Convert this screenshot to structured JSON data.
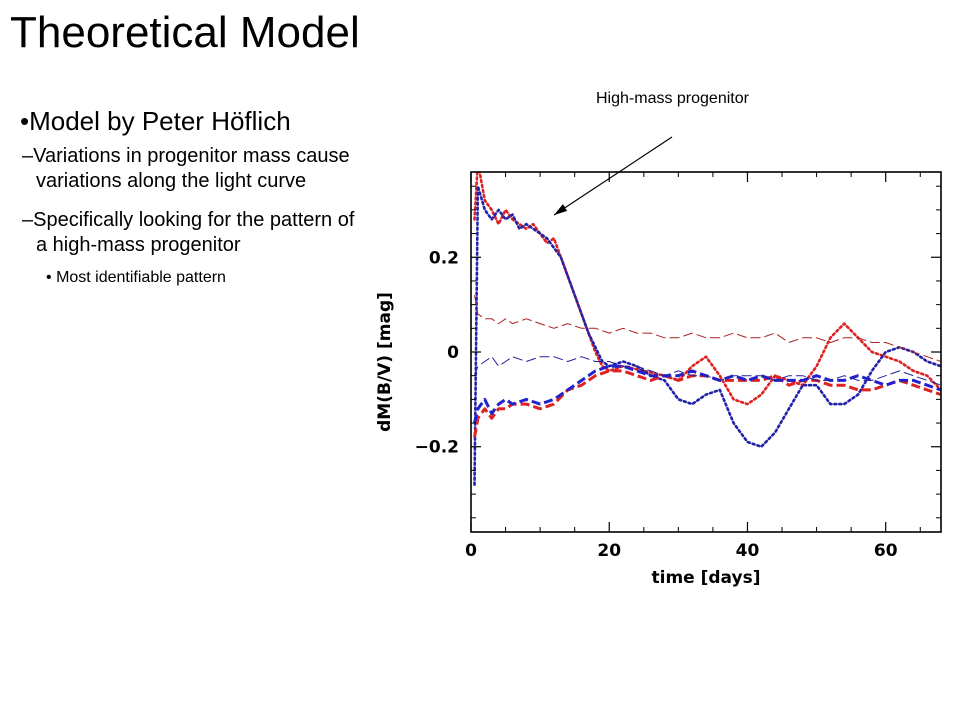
{
  "slide": {
    "title": "Theoretical Model",
    "bullet": "•Model by Peter Höflich",
    "sub_bullets": [
      "–Variations in progenitor mass cause variations along the light curve",
      "–Specifically looking for the pattern of a high-mass progenitor"
    ],
    "sub_sub_bullet": "Most identifiable pattern",
    "sub_sub_marker": "•"
  },
  "annotation": {
    "text": "High-mass progenitor",
    "arrow_color": "#000000"
  },
  "chart_data": {
    "type": "line",
    "xlabel": "time [days]",
    "ylabel": "dM(B/V) [mag]",
    "xlim": [
      0,
      68
    ],
    "ylim": [
      -0.38,
      0.38
    ],
    "x_ticks": [
      0,
      20,
      40,
      60
    ],
    "x_tick_labels": [
      "0",
      "20",
      "40",
      "60"
    ],
    "y_ticks": [
      0.2,
      0,
      -0.2
    ],
    "y_tick_labels": [
      "0.2",
      "0",
      "−0.2"
    ],
    "grid": false,
    "series": [
      {
        "color": "#dd2222",
        "style": "dotted",
        "x": [
          0.5,
          1,
          2,
          3,
          4,
          5,
          6,
          7,
          8,
          9,
          10,
          11,
          12,
          13,
          14,
          15,
          16,
          17,
          18,
          19,
          20,
          22,
          25,
          28,
          30,
          32,
          34,
          36,
          38,
          40,
          42,
          44,
          46,
          48,
          50,
          52,
          54,
          56,
          58,
          60,
          62,
          64,
          66,
          68
        ],
        "y": [
          0.28,
          0.4,
          0.32,
          0.3,
          0.27,
          0.3,
          0.28,
          0.27,
          0.26,
          0.27,
          0.25,
          0.23,
          0.24,
          0.2,
          0.16,
          0.12,
          0.08,
          0.04,
          0.0,
          -0.03,
          -0.04,
          -0.03,
          -0.04,
          -0.05,
          -0.06,
          -0.03,
          -0.01,
          -0.05,
          -0.1,
          -0.11,
          -0.09,
          -0.05,
          -0.06,
          -0.07,
          -0.03,
          0.03,
          0.06,
          0.03,
          0.0,
          -0.01,
          -0.02,
          -0.04,
          -0.05,
          -0.08
        ]
      },
      {
        "color": "#2222aa",
        "style": "dotted",
        "x": [
          0.5,
          1,
          2,
          3,
          4,
          5,
          6,
          7,
          8,
          9,
          10,
          11,
          12,
          13,
          14,
          15,
          16,
          17,
          18,
          19,
          20,
          22,
          24,
          26,
          28,
          30,
          32,
          34,
          36,
          38,
          40,
          42,
          44,
          46,
          48,
          50,
          52,
          54,
          56,
          58,
          60,
          62,
          64,
          66,
          68
        ],
        "y": [
          -0.28,
          0.35,
          0.3,
          0.28,
          0.3,
          0.28,
          0.29,
          0.26,
          0.27,
          0.26,
          0.25,
          0.24,
          0.22,
          0.2,
          0.16,
          0.12,
          0.08,
          0.04,
          0.01,
          -0.02,
          -0.03,
          -0.02,
          -0.03,
          -0.05,
          -0.06,
          -0.1,
          -0.11,
          -0.09,
          -0.08,
          -0.15,
          -0.19,
          -0.2,
          -0.17,
          -0.12,
          -0.07,
          -0.07,
          -0.11,
          -0.11,
          -0.09,
          -0.04,
          0.0,
          0.01,
          0.0,
          -0.02,
          -0.03
        ]
      },
      {
        "color": "#dd2222",
        "style": "dashed-thick",
        "x": [
          0.5,
          1,
          2,
          3,
          4,
          5,
          6,
          8,
          10,
          12,
          14,
          16,
          18,
          20,
          22,
          24,
          26,
          28,
          30,
          32,
          34,
          36,
          38,
          40,
          42,
          44,
          46,
          48,
          50,
          52,
          54,
          56,
          58,
          60,
          62,
          64,
          66,
          68
        ],
        "y": [
          -0.18,
          -0.14,
          -0.12,
          -0.14,
          -0.12,
          -0.12,
          -0.11,
          -0.11,
          -0.12,
          -0.11,
          -0.08,
          -0.07,
          -0.05,
          -0.04,
          -0.04,
          -0.05,
          -0.06,
          -0.05,
          -0.06,
          -0.05,
          -0.05,
          -0.06,
          -0.06,
          -0.06,
          -0.06,
          -0.05,
          -0.07,
          -0.06,
          -0.06,
          -0.07,
          -0.07,
          -0.08,
          -0.08,
          -0.07,
          -0.06,
          -0.07,
          -0.08,
          -0.09
        ]
      },
      {
        "color": "#2222cc",
        "style": "dashed-thick",
        "x": [
          0.5,
          1,
          2,
          3,
          4,
          5,
          6,
          8,
          10,
          12,
          14,
          16,
          18,
          20,
          22,
          24,
          26,
          28,
          30,
          32,
          34,
          36,
          38,
          40,
          42,
          44,
          46,
          48,
          50,
          52,
          54,
          56,
          58,
          60,
          62,
          64,
          66,
          68
        ],
        "y": [
          -0.15,
          -0.12,
          -0.1,
          -0.13,
          -0.11,
          -0.1,
          -0.11,
          -0.1,
          -0.11,
          -0.1,
          -0.08,
          -0.06,
          -0.04,
          -0.03,
          -0.03,
          -0.04,
          -0.05,
          -0.05,
          -0.05,
          -0.04,
          -0.05,
          -0.06,
          -0.05,
          -0.06,
          -0.05,
          -0.06,
          -0.06,
          -0.06,
          -0.05,
          -0.06,
          -0.06,
          -0.05,
          -0.06,
          -0.07,
          -0.06,
          -0.06,
          -0.07,
          -0.08
        ]
      },
      {
        "color": "#aa2222",
        "style": "dashed-thin",
        "x": [
          0.5,
          1,
          2,
          3,
          4,
          5,
          6,
          8,
          10,
          12,
          14,
          16,
          18,
          20,
          22,
          24,
          26,
          28,
          30,
          32,
          34,
          36,
          38,
          40,
          42,
          44,
          46,
          48,
          50,
          52,
          54,
          56,
          58,
          60,
          62,
          64,
          66,
          68
        ],
        "y": [
          0.12,
          0.08,
          0.07,
          0.07,
          0.06,
          0.07,
          0.06,
          0.07,
          0.06,
          0.05,
          0.06,
          0.05,
          0.05,
          0.04,
          0.05,
          0.04,
          0.04,
          0.03,
          0.03,
          0.04,
          0.03,
          0.03,
          0.04,
          0.03,
          0.03,
          0.04,
          0.02,
          0.03,
          0.03,
          0.02,
          0.03,
          0.03,
          0.02,
          0.02,
          0.01,
          0.0,
          -0.01,
          -0.02
        ]
      },
      {
        "color": "#222299",
        "style": "dashed-thin",
        "x": [
          0.5,
          1,
          2,
          3,
          4,
          5,
          6,
          8,
          10,
          12,
          14,
          16,
          18,
          20,
          22,
          24,
          26,
          28,
          30,
          32,
          34,
          36,
          38,
          40,
          42,
          44,
          46,
          48,
          50,
          52,
          54,
          56,
          58,
          60,
          62,
          64,
          66,
          68
        ],
        "y": [
          -0.05,
          -0.03,
          -0.02,
          -0.01,
          -0.03,
          -0.02,
          -0.01,
          -0.02,
          -0.01,
          -0.01,
          -0.02,
          -0.01,
          -0.02,
          -0.02,
          -0.03,
          -0.03,
          -0.04,
          -0.05,
          -0.04,
          -0.05,
          -0.05,
          -0.06,
          -0.05,
          -0.05,
          -0.05,
          -0.06,
          -0.05,
          -0.05,
          -0.06,
          -0.06,
          -0.05,
          -0.06,
          -0.06,
          -0.05,
          -0.04,
          -0.05,
          -0.06,
          -0.07
        ]
      }
    ]
  }
}
